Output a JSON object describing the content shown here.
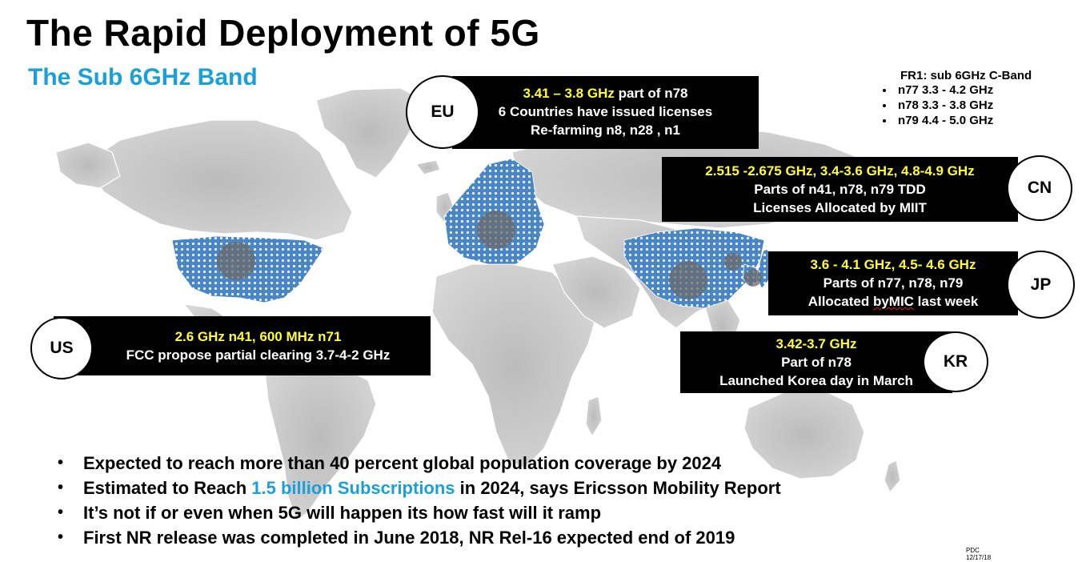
{
  "title": "The Rapid Deployment of  5G",
  "subtitle": "The Sub 6GHz Band",
  "fr1": {
    "heading": "FR1: sub 6GHz C-Band",
    "items": [
      "n77 3.3 - 4.2 GHz",
      "n78 3.3 - 3.8 GHz",
      "n79 4.4 - 5.0 GHz"
    ]
  },
  "regions": {
    "eu": {
      "label": "EU",
      "freq": "3.41 – 3.8 GHz",
      "freq_suffix": " part of n78",
      "line2": "6 Countries have issued licenses",
      "line3": "Re-farming n8, n28 , n1"
    },
    "cn": {
      "label": "CN",
      "freq": "2.515 -2.675 GHz, 3.4-3.6 GHz, 4.8-4.9 GHz",
      "line2": "Parts of n41, n78, n79 TDD",
      "line3": "Licenses Allocated by MIIT"
    },
    "jp": {
      "label": "JP",
      "freq": "3.6 - 4.1 GHz, 4.5- 4.6 GHz",
      "line2": "Parts of n77, n78, n79",
      "line3_a": "Allocated ",
      "line3_b": "byMIC",
      "line3_c": " last week"
    },
    "us": {
      "label": "US",
      "freq": "2.6 GHz n41, 600 MHz n71",
      "line2": "FCC propose partial clearing 3.7-4-2 GHz"
    },
    "kr": {
      "label": "KR",
      "freq": "3.42-3.7 GHz",
      "line2": "Part of n78",
      "line3": "Launched Korea day in March"
    }
  },
  "bullets": {
    "b1": "Expected to reach more than 40 percent global population coverage by 2024",
    "b2_pre": "Estimated to Reach ",
    "b2_highlight": "1.5 billion Subscriptions",
    "b2_post": " in 2024, says Ericsson Mobility Report",
    "b3": "It’s not if or even when 5G will happen its how fast will it ramp",
    "b4": "First NR release was completed in June 2018, NR Rel-16 expected end of 2019"
  },
  "footer": {
    "author": "PDC",
    "date": "12/17/18"
  },
  "colors": {
    "accent_blue": "#1a9fd8",
    "highlight_yellow": "#ffff33",
    "box_bg": "#000000",
    "map_land": "#c6c6c6",
    "map_dots": "#4a86c6"
  }
}
